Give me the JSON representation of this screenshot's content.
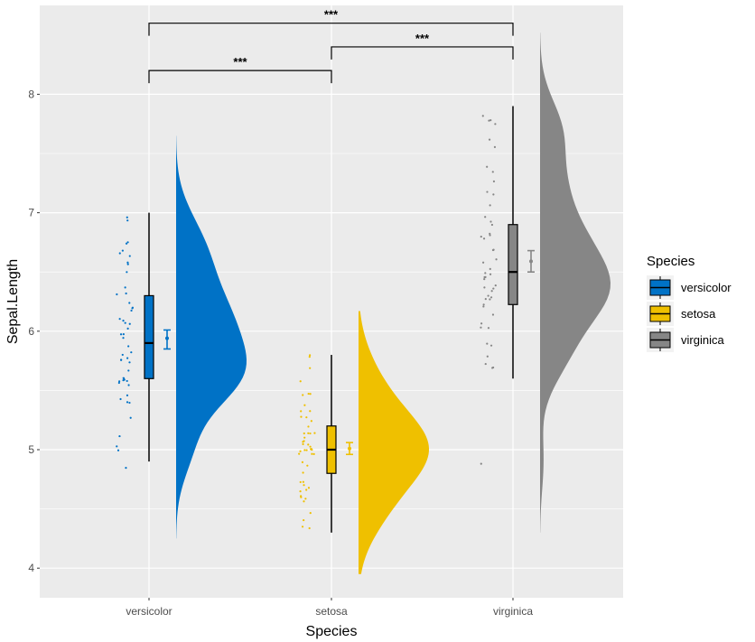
{
  "chart_data": {
    "type": "raincloud",
    "xlabel": "Species",
    "ylabel": "Sepal.Length",
    "ylim": [
      3.75,
      8.75
    ],
    "yticks": [
      4,
      5,
      6,
      7,
      8
    ],
    "categories": [
      "versicolor",
      "setosa",
      "virginica"
    ],
    "legend": {
      "title": "Species",
      "position": "right"
    },
    "groups": [
      {
        "name": "versicolor",
        "color": "#0072c6",
        "box": {
          "min": 4.9,
          "q1": 5.6,
          "median": 5.9,
          "q3": 6.3,
          "max": 7.0
        },
        "mean": 5.94,
        "ci": [
          5.85,
          6.01
        ],
        "density_range": [
          4.25,
          7.65
        ],
        "density_mode": 5.95,
        "points": [
          7.0,
          6.4,
          6.9,
          5.5,
          6.5,
          5.7,
          6.3,
          4.9,
          6.6,
          5.2,
          5.0,
          5.9,
          6.0,
          6.1,
          5.6,
          6.7,
          5.6,
          5.8,
          6.2,
          5.6,
          5.9,
          6.1,
          6.3,
          6.1,
          6.4,
          6.6,
          6.8,
          6.7,
          6.0,
          5.7,
          5.5,
          5.5,
          5.8,
          6.0,
          5.4,
          6.0,
          6.7,
          6.3,
          5.6,
          5.5,
          5.5,
          6.1,
          5.8,
          5.0,
          5.6,
          5.7,
          5.7,
          6.2,
          5.1,
          5.7
        ]
      },
      {
        "name": "setosa",
        "color": "#efc000",
        "box": {
          "min": 4.3,
          "q1": 4.8,
          "median": 5.0,
          "q3": 5.2,
          "max": 5.8
        },
        "mean": 5.01,
        "ci": [
          4.96,
          5.06
        ],
        "density_range": [
          3.95,
          6.17
        ],
        "density_mode": 5.0,
        "points": [
          5.1,
          4.9,
          4.7,
          4.6,
          5.0,
          5.4,
          4.6,
          5.0,
          4.4,
          4.9,
          5.4,
          4.8,
          4.8,
          4.3,
          5.8,
          5.7,
          5.4,
          5.1,
          5.7,
          5.1,
          5.4,
          5.1,
          4.6,
          5.1,
          4.8,
          5.0,
          5.0,
          5.2,
          5.2,
          4.7,
          4.8,
          5.4,
          5.2,
          5.5,
          4.9,
          5.0,
          5.5,
          4.9,
          4.4,
          5.1,
          5.0,
          4.5,
          4.4,
          5.0,
          5.1,
          4.8,
          5.1,
          4.6,
          5.3,
          5.0
        ]
      },
      {
        "name": "virginica",
        "color": "#868686",
        "box": {
          "min": 5.6,
          "q1": 6.225,
          "median": 6.5,
          "q3": 6.9,
          "max": 7.9
        },
        "mean": 6.59,
        "ci": [
          6.5,
          6.68
        ],
        "density_range": [
          4.3,
          8.52
        ],
        "density_mode": 6.4,
        "points": [
          6.3,
          5.8,
          7.1,
          6.3,
          6.5,
          7.6,
          4.9,
          7.3,
          6.7,
          7.2,
          6.5,
          6.4,
          6.8,
          5.7,
          5.8,
          6.4,
          6.5,
          7.7,
          7.7,
          6.0,
          6.9,
          5.6,
          7.7,
          6.3,
          6.7,
          7.2,
          6.2,
          6.1,
          6.4,
          7.2,
          7.4,
          7.9,
          6.4,
          6.3,
          6.1,
          7.7,
          6.3,
          6.4,
          6.0,
          6.9,
          6.7,
          6.9,
          5.8,
          6.8,
          6.7,
          6.7,
          6.3,
          6.5,
          6.2,
          5.9
        ]
      }
    ],
    "comparisons": [
      {
        "from": "versicolor",
        "to": "virginica",
        "label": "***",
        "y": 8.6
      },
      {
        "from": "setosa",
        "to": "virginica",
        "label": "***",
        "y": 8.4
      },
      {
        "from": "versicolor",
        "to": "setosa",
        "label": "***",
        "y": 8.2
      }
    ]
  }
}
